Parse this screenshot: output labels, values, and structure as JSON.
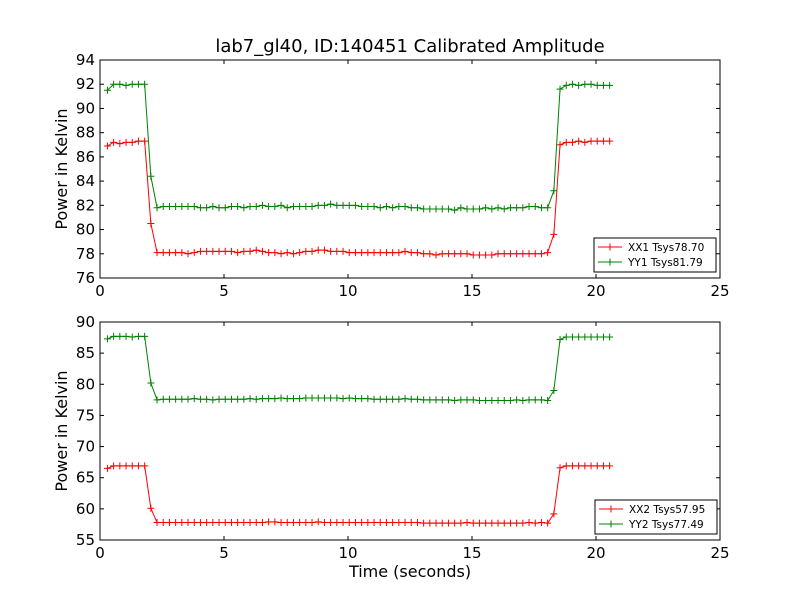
{
  "chart_data": [
    {
      "type": "line",
      "title": "lab7_gl40, ID:140451 Calibrated Amplitude",
      "xlabel": "",
      "ylabel": "Power in Kelvin",
      "xlim": [
        0,
        25
      ],
      "ylim": [
        76,
        94
      ],
      "xticks": [
        0,
        5,
        10,
        15,
        20,
        25
      ],
      "yticks": [
        76,
        78,
        80,
        82,
        84,
        86,
        88,
        90,
        92,
        94
      ],
      "legend_position": "lower-right",
      "series": [
        {
          "name": "XX1 Tsys78.70",
          "color": "#ff0000",
          "x": [
            0.3,
            0.55,
            0.8,
            1.05,
            1.3,
            1.55,
            1.8,
            2.05,
            2.3,
            2.55,
            2.8,
            3.05,
            3.3,
            3.55,
            3.8,
            4.05,
            4.3,
            4.55,
            4.8,
            5.05,
            5.3,
            5.55,
            5.8,
            6.05,
            6.3,
            6.55,
            6.8,
            7.05,
            7.3,
            7.55,
            7.8,
            8.05,
            8.3,
            8.55,
            8.8,
            9.05,
            9.3,
            9.55,
            9.8,
            10.05,
            10.3,
            10.55,
            10.8,
            11.05,
            11.3,
            11.55,
            11.8,
            12.05,
            12.3,
            12.55,
            12.8,
            13.05,
            13.3,
            13.55,
            13.8,
            14.05,
            14.3,
            14.55,
            14.8,
            15.05,
            15.3,
            15.55,
            15.8,
            16.05,
            16.3,
            16.55,
            16.8,
            17.05,
            17.3,
            17.55,
            17.8,
            18.05,
            18.3,
            18.55,
            18.8,
            19.05,
            19.3,
            19.55,
            19.8,
            20.05,
            20.3,
            20.55
          ],
          "y": [
            86.9,
            87.2,
            87.1,
            87.2,
            87.2,
            87.3,
            87.3,
            80.5,
            78.1,
            78.1,
            78.1,
            78.1,
            78.1,
            78.0,
            78.1,
            78.2,
            78.2,
            78.2,
            78.2,
            78.2,
            78.2,
            78.1,
            78.2,
            78.2,
            78.3,
            78.2,
            78.1,
            78.1,
            78.0,
            78.1,
            78.0,
            78.1,
            78.2,
            78.2,
            78.3,
            78.3,
            78.2,
            78.2,
            78.2,
            78.1,
            78.1,
            78.1,
            78.1,
            78.1,
            78.1,
            78.1,
            78.1,
            78.1,
            78.2,
            78.1,
            78.1,
            78.0,
            78.0,
            77.9,
            78.0,
            78.0,
            78.0,
            78.0,
            78.0,
            77.9,
            77.9,
            77.9,
            77.9,
            78.0,
            78.0,
            78.0,
            78.0,
            78.0,
            78.0,
            78.0,
            78.0,
            78.1,
            79.6,
            87.0,
            87.2,
            87.2,
            87.3,
            87.2,
            87.3,
            87.3,
            87.3,
            87.3
          ]
        },
        {
          "name": "YY1 Tsys81.79",
          "color": "#008000",
          "x": [
            0.3,
            0.55,
            0.8,
            1.05,
            1.3,
            1.55,
            1.8,
            2.05,
            2.3,
            2.55,
            2.8,
            3.05,
            3.3,
            3.55,
            3.8,
            4.05,
            4.3,
            4.55,
            4.8,
            5.05,
            5.3,
            5.55,
            5.8,
            6.05,
            6.3,
            6.55,
            6.8,
            7.05,
            7.3,
            7.55,
            7.8,
            8.05,
            8.3,
            8.55,
            8.8,
            9.05,
            9.3,
            9.55,
            9.8,
            10.05,
            10.3,
            10.55,
            10.8,
            11.05,
            11.3,
            11.55,
            11.8,
            12.05,
            12.3,
            12.55,
            12.8,
            13.05,
            13.3,
            13.55,
            13.8,
            14.05,
            14.3,
            14.55,
            14.8,
            15.05,
            15.3,
            15.55,
            15.8,
            16.05,
            16.3,
            16.55,
            16.8,
            17.05,
            17.3,
            17.55,
            17.8,
            18.05,
            18.3,
            18.55,
            18.8,
            19.05,
            19.3,
            19.55,
            19.8,
            20.05,
            20.3,
            20.55
          ],
          "y": [
            91.5,
            92.0,
            92.0,
            91.9,
            92.0,
            92.0,
            92.0,
            84.4,
            81.8,
            81.9,
            81.9,
            81.9,
            81.9,
            81.9,
            81.9,
            81.8,
            81.8,
            81.9,
            81.8,
            81.8,
            81.9,
            81.9,
            81.8,
            81.9,
            81.9,
            82.0,
            81.9,
            81.9,
            82.0,
            81.8,
            81.9,
            81.9,
            81.9,
            81.9,
            82.0,
            82.0,
            82.1,
            82.0,
            82.0,
            82.0,
            82.0,
            81.9,
            81.9,
            81.9,
            81.8,
            81.9,
            81.8,
            81.9,
            81.9,
            81.8,
            81.8,
            81.7,
            81.7,
            81.7,
            81.7,
            81.7,
            81.6,
            81.8,
            81.7,
            81.7,
            81.7,
            81.8,
            81.7,
            81.8,
            81.7,
            81.8,
            81.8,
            81.8,
            81.9,
            81.9,
            81.8,
            81.8,
            83.2,
            91.6,
            91.9,
            92.0,
            91.9,
            92.0,
            92.0,
            91.9,
            91.9,
            91.9
          ]
        }
      ]
    },
    {
      "type": "line",
      "title": "",
      "xlabel": "Time (seconds)",
      "ylabel": "Power in Kelvin",
      "xlim": [
        0,
        25
      ],
      "ylim": [
        55,
        90
      ],
      "xticks": [
        0,
        5,
        10,
        15,
        20,
        25
      ],
      "yticks": [
        55,
        60,
        65,
        70,
        75,
        80,
        85,
        90
      ],
      "legend_position": "lower-right",
      "series": [
        {
          "name": "XX2 Tsys57.95",
          "color": "#ff0000",
          "x": [
            0.3,
            0.55,
            0.8,
            1.05,
            1.3,
            1.55,
            1.8,
            2.05,
            2.3,
            2.55,
            2.8,
            3.05,
            3.3,
            3.55,
            3.8,
            4.05,
            4.3,
            4.55,
            4.8,
            5.05,
            5.3,
            5.55,
            5.8,
            6.05,
            6.3,
            6.55,
            6.8,
            7.05,
            7.3,
            7.55,
            7.8,
            8.05,
            8.3,
            8.55,
            8.8,
            9.05,
            9.3,
            9.55,
            9.8,
            10.05,
            10.3,
            10.55,
            10.8,
            11.05,
            11.3,
            11.55,
            11.8,
            12.05,
            12.3,
            12.55,
            12.8,
            13.05,
            13.3,
            13.55,
            13.8,
            14.05,
            14.3,
            14.55,
            14.8,
            15.05,
            15.3,
            15.55,
            15.8,
            16.05,
            16.3,
            16.55,
            16.8,
            17.05,
            17.3,
            17.55,
            17.8,
            18.05,
            18.3,
            18.55,
            18.8,
            19.05,
            19.3,
            19.55,
            19.8,
            20.05,
            20.3,
            20.55
          ],
          "y": [
            66.5,
            66.9,
            66.9,
            66.9,
            66.9,
            66.9,
            66.9,
            60.1,
            57.8,
            57.8,
            57.8,
            57.8,
            57.8,
            57.8,
            57.8,
            57.8,
            57.8,
            57.8,
            57.8,
            57.8,
            57.8,
            57.8,
            57.8,
            57.8,
            57.8,
            57.8,
            57.9,
            57.9,
            57.8,
            57.8,
            57.8,
            57.8,
            57.8,
            57.8,
            57.9,
            57.8,
            57.8,
            57.8,
            57.8,
            57.8,
            57.8,
            57.8,
            57.8,
            57.8,
            57.8,
            57.8,
            57.8,
            57.8,
            57.8,
            57.8,
            57.8,
            57.7,
            57.7,
            57.7,
            57.7,
            57.7,
            57.7,
            57.7,
            57.8,
            57.7,
            57.7,
            57.7,
            57.7,
            57.7,
            57.7,
            57.7,
            57.7,
            57.7,
            57.8,
            57.7,
            57.8,
            57.7,
            59.2,
            66.6,
            66.9,
            66.9,
            66.9,
            66.9,
            66.9,
            66.9,
            66.9,
            66.9
          ]
        },
        {
          "name": "YY2 Tsys77.49",
          "color": "#008000",
          "x": [
            0.3,
            0.55,
            0.8,
            1.05,
            1.3,
            1.55,
            1.8,
            2.05,
            2.3,
            2.55,
            2.8,
            3.05,
            3.3,
            3.55,
            3.8,
            4.05,
            4.3,
            4.55,
            4.8,
            5.05,
            5.3,
            5.55,
            5.8,
            6.05,
            6.3,
            6.55,
            6.8,
            7.05,
            7.3,
            7.55,
            7.8,
            8.05,
            8.3,
            8.55,
            8.8,
            9.05,
            9.3,
            9.55,
            9.8,
            10.05,
            10.3,
            10.55,
            10.8,
            11.05,
            11.3,
            11.55,
            11.8,
            12.05,
            12.3,
            12.55,
            12.8,
            13.05,
            13.3,
            13.55,
            13.8,
            14.05,
            14.3,
            14.55,
            14.8,
            15.05,
            15.3,
            15.55,
            15.8,
            16.05,
            16.3,
            16.55,
            16.8,
            17.05,
            17.3,
            17.55,
            17.8,
            18.05,
            18.3,
            18.55,
            18.8,
            19.05,
            19.3,
            19.55,
            19.8,
            20.05,
            20.3,
            20.55
          ],
          "y": [
            87.3,
            87.7,
            87.7,
            87.7,
            87.6,
            87.7,
            87.7,
            80.2,
            77.5,
            77.6,
            77.6,
            77.6,
            77.6,
            77.6,
            77.7,
            77.6,
            77.6,
            77.5,
            77.6,
            77.6,
            77.6,
            77.6,
            77.6,
            77.7,
            77.6,
            77.7,
            77.7,
            77.7,
            77.8,
            77.7,
            77.7,
            77.7,
            77.8,
            77.8,
            77.8,
            77.8,
            77.8,
            77.8,
            77.7,
            77.8,
            77.7,
            77.7,
            77.7,
            77.6,
            77.6,
            77.6,
            77.6,
            77.6,
            77.7,
            77.6,
            77.6,
            77.5,
            77.5,
            77.5,
            77.5,
            77.5,
            77.4,
            77.5,
            77.5,
            77.5,
            77.4,
            77.4,
            77.4,
            77.4,
            77.4,
            77.4,
            77.5,
            77.4,
            77.5,
            77.5,
            77.5,
            77.4,
            79.0,
            87.2,
            87.6,
            87.6,
            87.6,
            87.6,
            87.6,
            87.6,
            87.6,
            87.6
          ]
        }
      ]
    }
  ]
}
